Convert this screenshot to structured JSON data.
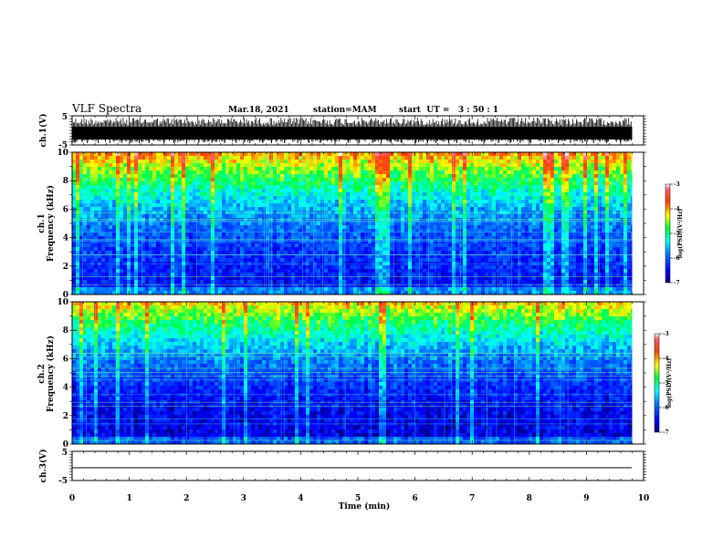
{
  "header": {
    "title": "VLF Spectra",
    "date": "Mar.18, 2021",
    "station": "station=MAM",
    "start": "start  UT =   3 : 50 : 1"
  },
  "chart_data": [
    {
      "type": "line",
      "name": "ch1_waveform",
      "ylabel": "ch.1(V)",
      "ylim": [
        -5,
        5
      ],
      "yticks": [
        "5",
        "-5"
      ],
      "xlim": [
        0,
        10
      ],
      "note_signal_end_min": 9.8
    },
    {
      "type": "heatmap",
      "name": "ch1_spectrogram",
      "ylabel_line1": "ch.1",
      "ylabel_line2": "Frequency (kHz)",
      "ylim": [
        0,
        10
      ],
      "yticks": [
        "0",
        "2",
        "4",
        "6",
        "8",
        "10"
      ],
      "xlim": [
        0,
        10
      ],
      "data_end_min": 9.8,
      "colorbar": {
        "label": "log(PSD)(V²/Hz)",
        "range": [
          -7,
          -3
        ],
        "ticks": [
          "-3",
          "-4",
          "-5",
          "-6",
          "-7"
        ]
      }
    },
    {
      "type": "heatmap",
      "name": "ch2_spectrogram",
      "ylabel_line1": "ch.2",
      "ylabel_line2": "Frequency (kHz)",
      "ylim": [
        0,
        10
      ],
      "yticks": [
        "0",
        "2",
        "4",
        "6",
        "8",
        "10"
      ],
      "xlim": [
        0,
        10
      ],
      "data_end_min": 9.8,
      "colorbar": {
        "label": "log(PSD)(V²/Hz)",
        "range": [
          -7,
          -3
        ],
        "ticks": [
          "-3",
          "-4",
          "-5",
          "-6",
          "-7"
        ]
      }
    },
    {
      "type": "line",
      "name": "ch3_waveform",
      "ylabel": "ch.3(V)",
      "ylim": [
        -5,
        5
      ],
      "yticks": [
        "5",
        "-5"
      ],
      "xlim": [
        0,
        10
      ],
      "constant_value": 0,
      "xlabel": "Time (min)",
      "xticks": [
        "0",
        "1",
        "2",
        "3",
        "4",
        "5",
        "6",
        "7",
        "8",
        "9",
        "10"
      ]
    }
  ]
}
